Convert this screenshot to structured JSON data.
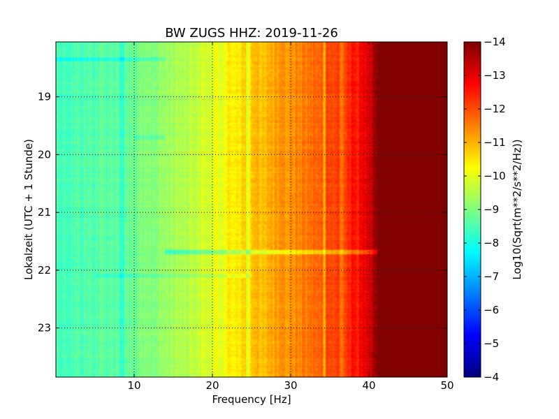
{
  "chart_data": {
    "type": "heatmap",
    "title": "BW ZUGS HHZ: 2019-11-26",
    "xlabel": "Frequency [Hz]",
    "ylabel": "Lokalzeit (UTC + 1 Stunde)",
    "xlim": [
      0,
      50
    ],
    "ylim": [
      18.05,
      23.85
    ],
    "y_inverted": true,
    "x_ticks": [
      10,
      20,
      30,
      40,
      50
    ],
    "x_tick_labels": [
      "10",
      "20",
      "30",
      "40",
      "50"
    ],
    "y_ticks": [
      19,
      20,
      21,
      22,
      23
    ],
    "y_tick_labels": [
      "19",
      "20",
      "21",
      "22",
      "23"
    ],
    "grid": true,
    "colormap": "jet",
    "colorbar": {
      "label": "Log10(Sqrt(m**2/s**2/Hz))",
      "range": [
        -14,
        -4
      ],
      "ticks": [
        -4,
        -5,
        -6,
        -7,
        -8,
        -9,
        -10,
        -11,
        -12,
        -13,
        -14
      ],
      "tick_labels": [
        "−4",
        "−5",
        "−6",
        "−7",
        "−8",
        "−9",
        "−10",
        "−11",
        "−12",
        "−13",
        "−14"
      ]
    },
    "frequency_profile": {
      "frequency_hz": [
        0,
        2,
        5,
        8,
        10,
        12,
        15,
        18,
        20,
        22,
        25,
        28,
        30,
        32,
        35,
        37,
        39,
        40,
        41,
        45,
        50
      ],
      "value": [
        -8.5,
        -8.5,
        -8.6,
        -8.7,
        -8.8,
        -9.0,
        -9.4,
        -9.7,
        -9.9,
        -10.3,
        -10.8,
        -11.1,
        -11.3,
        -11.6,
        -12.0,
        -12.3,
        -12.7,
        -13.2,
        -14.0,
        -14.0,
        -14.0
      ]
    },
    "horizontal_features": [
      {
        "time": 21.68,
        "value_offset": 1.0,
        "freq_range": [
          14,
          41
        ]
      },
      {
        "time": 18.35,
        "value_offset": 0.5,
        "freq_range": [
          0,
          14
        ]
      },
      {
        "time": 19.7,
        "value_offset": 0.4,
        "freq_range": [
          10,
          14
        ]
      },
      {
        "time": 22.1,
        "value_offset": 0.4,
        "freq_range": [
          5,
          25
        ]
      }
    ],
    "vertical_features": [
      {
        "frequency_hz": 8.5,
        "value_offset": 0.6
      },
      {
        "frequency_hz": 24.5,
        "value_offset": 0.7
      },
      {
        "frequency_hz": 34.3,
        "value_offset": 0.9
      },
      {
        "frequency_hz": 36.5,
        "value_offset": 0.6
      }
    ]
  }
}
